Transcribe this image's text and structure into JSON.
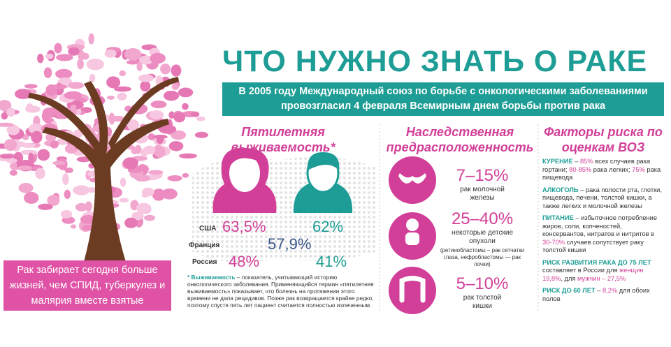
{
  "header": {
    "title": "ЧТО НУЖНО ЗНАТЬ О РАКЕ",
    "banner": "В 2005 году Международный союз по борьбе с онкологическими заболеваниями провозгласил 4 февраля Всемирным днем борьбы против рака"
  },
  "callout": "Рак забирает сегодня больше жизней, чем СПИД, туберкулез и малярия вместе взятые",
  "survival": {
    "heading": "Пятилетняя выживаемость*",
    "rows": [
      {
        "country": "США",
        "women": "63,5%",
        "men": "62%"
      },
      {
        "country": "Франция",
        "both": "57,9%"
      },
      {
        "country": "Россия",
        "women": "48%",
        "men": "41%"
      }
    ],
    "footnote": [
      {
        "text": "* Выживаемость",
        "color": "#1d9d95"
      },
      {
        "text": " – показатель, учитывающий историю онкологического заболевания. Применяющийся термин «пятилетняя выживаемость» показывает, что болезнь на протяжении этого времени не дала рецидивов. Позже рак возвращается крайне редко, поэтому спустя пять лет пациент считается полностью излеченным.",
        "color": "#333333"
      }
    ]
  },
  "heredity": {
    "heading": "Наследственная предрасположенность",
    "items": [
      {
        "percent": "7–15%",
        "label": "рак молочной железы"
      },
      {
        "percent": "25–40%",
        "label": "некоторые детские опухоли",
        "note": "(ретинобластомы – рак сетчатки глаза, нефробластомы — рак почки)"
      },
      {
        "percent": "5–10%",
        "label": "рак толстой кишки"
      }
    ]
  },
  "risks": {
    "heading": "Факторы риска по оценкам ВОЗ",
    "items": [
      [
        {
          "text": "КУРЕНИЕ",
          "color": "#1d9d95"
        },
        {
          "text": " – ",
          "color": "#333333"
        },
        {
          "text": "85%",
          "color": "#d23f98"
        },
        {
          "text": " всех случаев рака гортани; ",
          "color": "#333333"
        },
        {
          "text": "80-85%",
          "color": "#d23f98"
        },
        {
          "text": " рака легких; ",
          "color": "#333333"
        },
        {
          "text": "75%",
          "color": "#d23f98"
        },
        {
          "text": " рака пищевода",
          "color": "#333333"
        }
      ],
      [
        {
          "text": "АЛКОГОЛЬ",
          "color": "#1d9d95"
        },
        {
          "text": " – рака полости рта, глотки, пищевода, печени, толстой кишки, а также легких и молочной железы",
          "color": "#333333"
        }
      ],
      [
        {
          "text": "ПИТАНИЕ",
          "color": "#1d9d95"
        },
        {
          "text": " – избыточное потребление жиров, соли, копченостей, консервантов, нитратов и нитритов в ",
          "color": "#333333"
        },
        {
          "text": "30-70%",
          "color": "#d23f98"
        },
        {
          "text": " случаев сопутствует раку толстой кишки",
          "color": "#333333"
        }
      ],
      [
        {
          "text": "РИСК РАЗВИТИЯ РАКА ДО 75 ЛЕТ",
          "color": "#1d9d95"
        },
        {
          "text": " составляет в России для ",
          "color": "#333333"
        },
        {
          "text": "женщин 19,8%",
          "color": "#d23f98"
        },
        {
          "text": ", для ",
          "color": "#333333"
        },
        {
          "text": "мужчин – 27,5%",
          "color": "#d23f98"
        }
      ],
      [
        {
          "text": "РИСК ДО 60 ЛЕТ",
          "color": "#1d9d95"
        },
        {
          "text": " – ",
          "color": "#333333"
        },
        {
          "text": "8,2%",
          "color": "#d23f98"
        },
        {
          "text": " для обоих полов",
          "color": "#333333"
        }
      ]
    ]
  }
}
